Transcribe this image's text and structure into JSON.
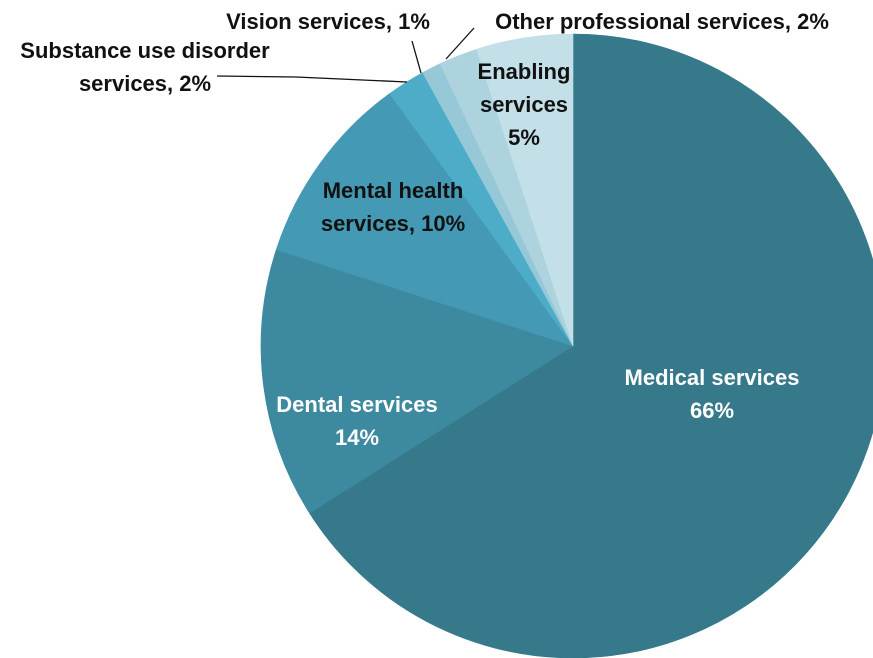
{
  "chart_data": {
    "type": "pie",
    "title": "",
    "slices": [
      {
        "name": "Medical services",
        "value": 66,
        "label_line1": "Medical services",
        "label_line2": "66%",
        "color": "#36798A"
      },
      {
        "name": "Dental services",
        "value": 14,
        "label_line1": "Dental services",
        "label_line2": "14%",
        "color": "#3C89A0"
      },
      {
        "name": "Mental health services",
        "value": 10,
        "label_line1": "Mental health",
        "label_line2": "services, 10%",
        "color": "#4499B4"
      },
      {
        "name": "Substance use disorder services",
        "value": 2,
        "label_line1": "Substance use disorder",
        "label_line2": "services, 2%",
        "color": "#4DADC8"
      },
      {
        "name": "Vision services",
        "value": 1,
        "label_line1": "Vision services, 1%",
        "color": "#97C8D7"
      },
      {
        "name": "Other professional services",
        "value": 2,
        "label_line1": "Other professional services, 2%",
        "color": "#ADD3DF"
      },
      {
        "name": "Enabling services",
        "value": 5,
        "label_line1": "Enabling",
        "label_line2": "services",
        "label_line3": "5%",
        "color": "#C3DFE8"
      }
    ]
  }
}
